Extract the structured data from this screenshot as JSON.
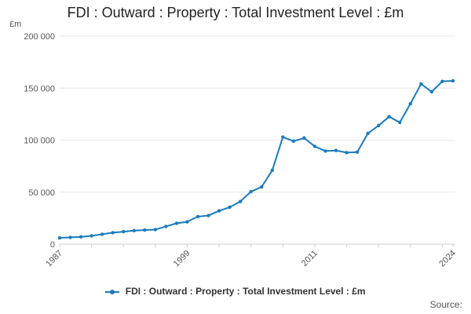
{
  "title": "FDI : Outward : Property : Total Investment Level : £m",
  "source_label": "Source:",
  "colors": {
    "series": "#1a7bbd",
    "grid": "#e6e6e6",
    "axis": "#cccccc"
  },
  "chart_data": {
    "type": "line",
    "title": "FDI : Outward : Property : Total Investment Level : £m",
    "ylabel": "£m",
    "xlabel": "",
    "xlim": [
      1987,
      2024
    ],
    "ylim": [
      0,
      200000
    ],
    "y_ticks": [
      {
        "value": 0,
        "label": "0"
      },
      {
        "value": 50000,
        "label": "50 000"
      },
      {
        "value": 100000,
        "label": "100 000"
      },
      {
        "value": 150000,
        "label": "150 000"
      },
      {
        "value": 200000,
        "label": "200 000"
      }
    ],
    "x_ticks": [
      {
        "value": 1987,
        "label": "1987"
      },
      {
        "value": 1999,
        "label": "1999"
      },
      {
        "value": 2011,
        "label": "2011"
      },
      {
        "value": 2024,
        "label": "2024"
      }
    ],
    "grid": true,
    "legend_position": "bottom",
    "series": [
      {
        "name": "FDI : Outward : Property : Total Investment Level : £m",
        "x": [
          1987,
          1988,
          1989,
          1990,
          1991,
          1992,
          1993,
          1994,
          1995,
          1996,
          1997,
          1998,
          1999,
          2000,
          2001,
          2002,
          2003,
          2004,
          2005,
          2006,
          2007,
          2008,
          2009,
          2010,
          2011,
          2012,
          2013,
          2014,
          2015,
          2016,
          2017,
          2018,
          2019,
          2020,
          2021,
          2022,
          2023,
          2024
        ],
        "values": [
          6000,
          6500,
          7000,
          8000,
          9500,
          11000,
          12000,
          13000,
          13500,
          14000,
          17000,
          20000,
          21500,
          26500,
          27500,
          32000,
          35500,
          41000,
          50500,
          55000,
          71000,
          103000,
          99000,
          102000,
          94000,
          89500,
          90000,
          88000,
          88500,
          106500,
          114000,
          122500,
          117000,
          135000,
          154000,
          146500,
          156500,
          157000
        ]
      }
    ]
  }
}
